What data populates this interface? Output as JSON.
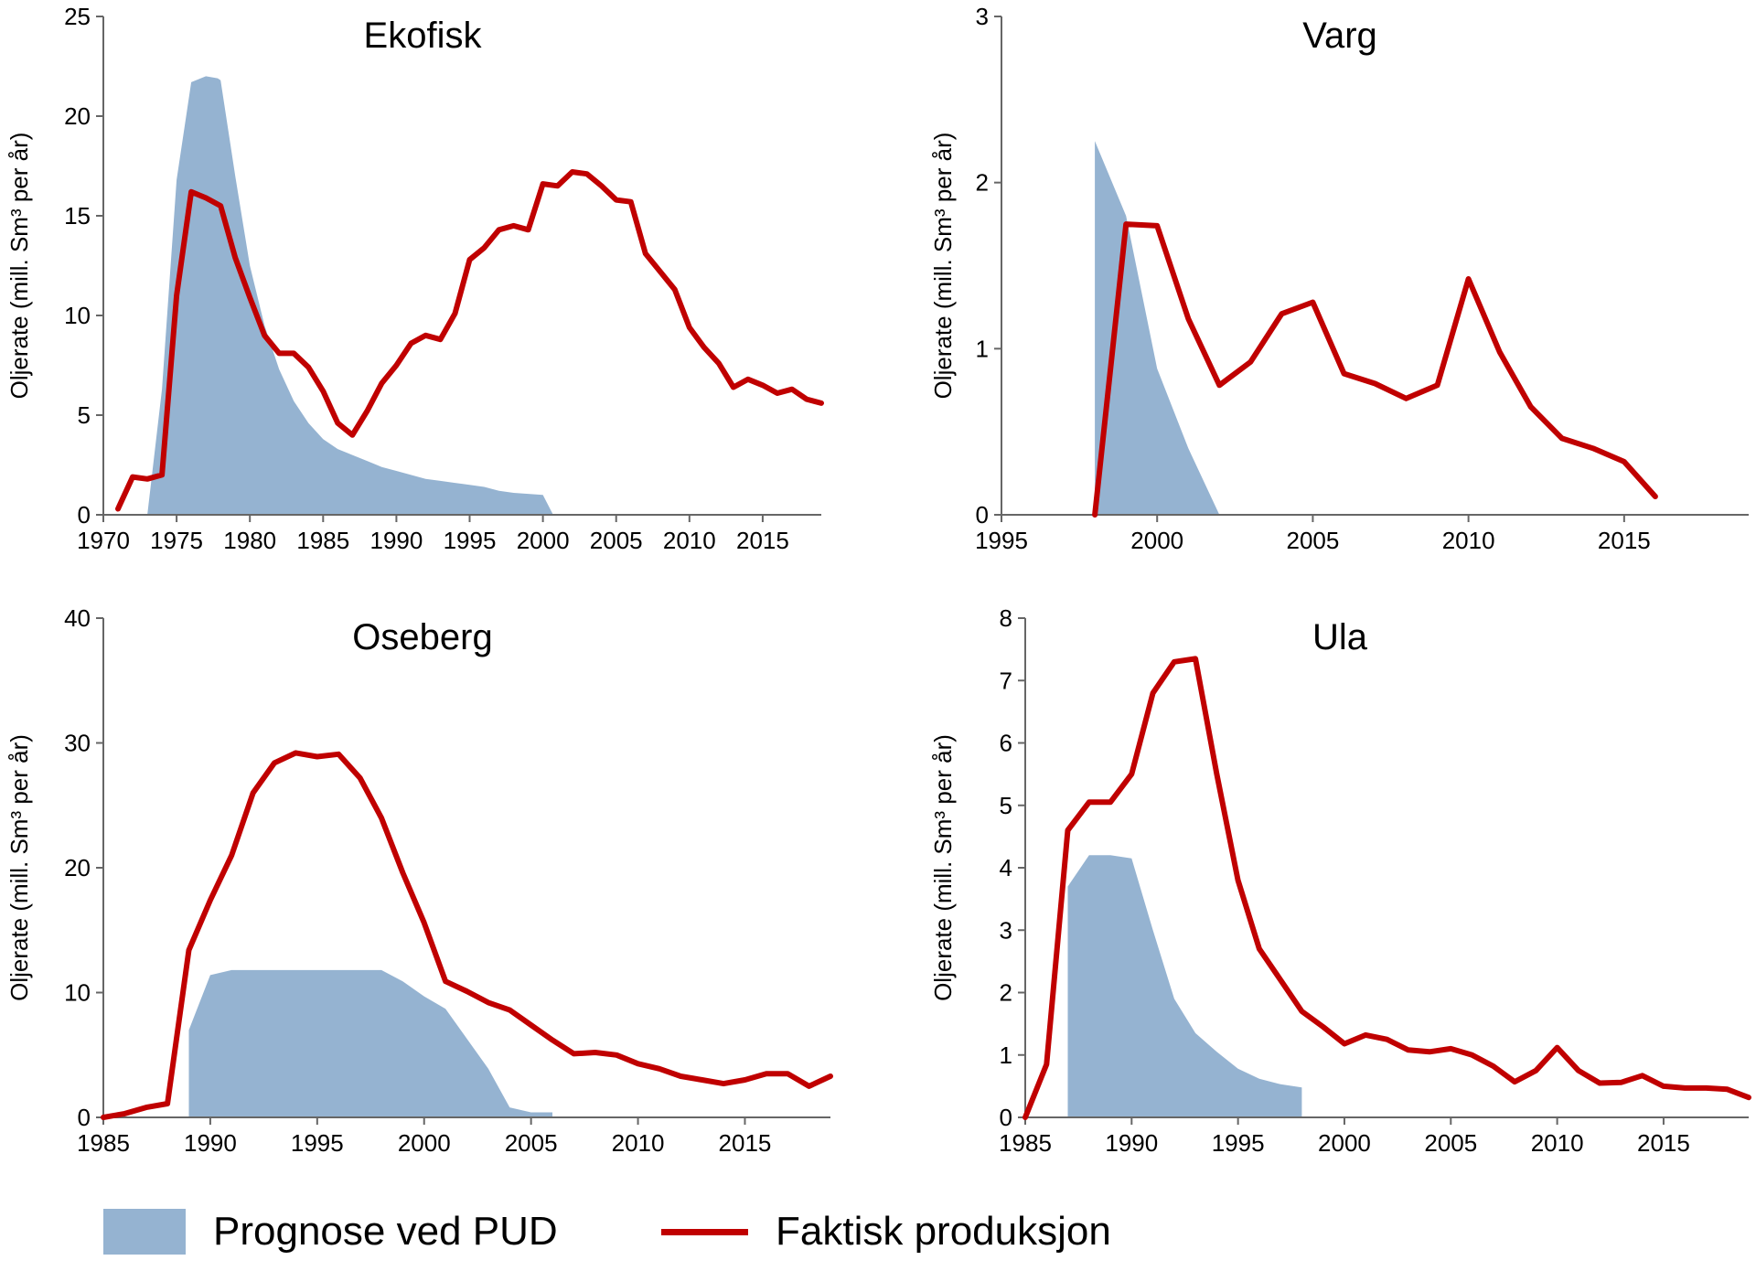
{
  "colors": {
    "forecast": "#95b3d1",
    "actual": "#c00000",
    "axis": "#666666"
  },
  "legend": {
    "forecast_label": "Prognose ved PUD",
    "actual_label": "Faktisk produksjon"
  },
  "chart_data": [
    {
      "type": "area",
      "title": "Ekofisk",
      "ylabel": "Oljerate (mill. Sm³ per år)",
      "xlim": [
        1970,
        2019
      ],
      "ylim": [
        0,
        25
      ],
      "xticks": [
        1970,
        1975,
        1980,
        1985,
        1990,
        1995,
        2000,
        2005,
        2010,
        2015
      ],
      "yticks": [
        0,
        5,
        10,
        15,
        20,
        25
      ],
      "series": [
        {
          "name": "Prognose ved PUD",
          "type": "area",
          "x": [
            1973,
            1974,
            1975,
            1976,
            1977,
            1977.8,
            1978,
            1979,
            1980,
            1981,
            1982,
            1983,
            1984,
            1985,
            1986,
            1987,
            1988,
            1989,
            1990,
            1991,
            1992,
            1993,
            1994,
            1995,
            1996,
            1997,
            1998,
            1999,
            2000,
            2000.7
          ],
          "y": [
            0,
            6.3,
            16.8,
            21.7,
            22.0,
            21.9,
            21.8,
            17.0,
            12.5,
            9.5,
            7.3,
            5.7,
            4.6,
            3.8,
            3.3,
            3.0,
            2.7,
            2.4,
            2.2,
            2.0,
            1.8,
            1.7,
            1.6,
            1.5,
            1.4,
            1.2,
            1.1,
            1.05,
            1.0,
            0
          ]
        },
        {
          "name": "Faktisk produksjon",
          "type": "line",
          "x": [
            1971,
            1972,
            1973,
            1974,
            1975,
            1976,
            1977,
            1978,
            1979,
            1980,
            1981,
            1982,
            1983,
            1984,
            1985,
            1986,
            1987,
            1988,
            1989,
            1990,
            1991,
            1992,
            1993,
            1994,
            1995,
            1996,
            1997,
            1998,
            1999,
            2000,
            2001,
            2002,
            2003,
            2004,
            2005,
            2006,
            2007,
            2008,
            2009,
            2010,
            2011,
            2012,
            2013,
            2014,
            2015,
            2016,
            2017,
            2018,
            2019
          ],
          "y": [
            0.3,
            1.9,
            1.8,
            2.0,
            11.0,
            16.2,
            15.9,
            15.5,
            12.9,
            10.9,
            9.0,
            8.1,
            8.1,
            7.4,
            6.2,
            4.6,
            4.0,
            5.2,
            6.6,
            7.5,
            8.6,
            9.0,
            8.8,
            10.1,
            12.8,
            13.4,
            14.3,
            14.5,
            14.3,
            16.6,
            16.5,
            17.2,
            17.1,
            16.5,
            15.8,
            15.7,
            13.1,
            12.2,
            11.3,
            9.4,
            8.4,
            7.6,
            6.4,
            6.8,
            6.5,
            6.1,
            6.3,
            5.8,
            5.6
          ]
        }
      ]
    },
    {
      "type": "area",
      "title": "Varg",
      "ylabel": "Oljerate (mill. Sm³ per år)",
      "xlim": [
        1995,
        2019
      ],
      "ylim": [
        0,
        3
      ],
      "xticks": [
        1995,
        2000,
        2005,
        2010,
        2015
      ],
      "yticks": [
        0,
        1,
        2,
        3
      ],
      "series": [
        {
          "name": "Prognose ved PUD",
          "type": "area",
          "x": [
            1998,
            1998,
            1999,
            2000,
            2001,
            2002
          ],
          "y": [
            0,
            2.25,
            1.8,
            0.88,
            0.4,
            0
          ]
        },
        {
          "name": "Faktisk produksjon",
          "type": "line",
          "x": [
            1998,
            1999,
            2000,
            2001,
            2002,
            2003,
            2004,
            2005,
            2006,
            2007,
            2008,
            2009,
            2010,
            2011,
            2012,
            2013,
            2014,
            2015,
            2016
          ],
          "y": [
            0,
            1.75,
            1.74,
            1.18,
            0.78,
            0.92,
            1.21,
            1.28,
            0.85,
            0.79,
            0.7,
            0.78,
            1.42,
            0.98,
            0.65,
            0.46,
            0.4,
            0.32,
            0.11
          ]
        }
      ]
    },
    {
      "type": "area",
      "title": "Oseberg",
      "ylabel": "Oljerate (mill. Sm³ per år)",
      "xlim": [
        1985,
        2019
      ],
      "ylim": [
        0,
        40
      ],
      "xticks": [
        1985,
        1990,
        1995,
        2000,
        2005,
        2010,
        2015
      ],
      "yticks": [
        0,
        10,
        20,
        30,
        40
      ],
      "series": [
        {
          "name": "Prognose ved PUD",
          "type": "area",
          "x": [
            1989,
            1989,
            1990,
            1991,
            1992,
            1993,
            1994,
            1995,
            1996,
            1997,
            1998,
            1999,
            2000,
            2001,
            2002,
            2003,
            2004,
            2005,
            2006,
            2006
          ],
          "y": [
            0,
            7.0,
            11.4,
            11.8,
            11.8,
            11.8,
            11.8,
            11.8,
            11.8,
            11.8,
            11.8,
            10.9,
            9.7,
            8.7,
            6.3,
            3.9,
            0.8,
            0.4,
            0.4,
            0
          ]
        },
        {
          "name": "Faktisk produksjon",
          "type": "line",
          "x": [
            1985,
            1986,
            1987,
            1988,
            1989,
            1990,
            1991,
            1992,
            1993,
            1994,
            1995,
            1996,
            1997,
            1998,
            1999,
            2000,
            2001,
            2002,
            2003,
            2004,
            2005,
            2006,
            2007,
            2008,
            2009,
            2010,
            2011,
            2012,
            2013,
            2014,
            2015,
            2016,
            2017,
            2018,
            2019
          ],
          "y": [
            0,
            0.3,
            0.8,
            1.1,
            13.4,
            17.4,
            21.0,
            26.0,
            28.4,
            29.2,
            28.9,
            29.1,
            27.2,
            24.0,
            19.6,
            15.6,
            10.9,
            10.1,
            9.2,
            8.6,
            7.4,
            6.2,
            5.1,
            5.2,
            5.0,
            4.3,
            3.9,
            3.3,
            3.0,
            2.7,
            3.0,
            3.5,
            3.5,
            2.5,
            3.3
          ]
        }
      ]
    },
    {
      "type": "area",
      "title": "Ula",
      "ylabel": "Oljerate (mill. Sm³ per år)",
      "xlim": [
        1985,
        2019
      ],
      "ylim": [
        0,
        8
      ],
      "xticks": [
        1985,
        1990,
        1995,
        2000,
        2005,
        2010,
        2015
      ],
      "yticks": [
        0,
        1,
        2,
        3,
        4,
        5,
        6,
        7,
        8
      ],
      "series": [
        {
          "name": "Prognose ved PUD",
          "type": "area",
          "x": [
            1987,
            1987,
            1988,
            1989,
            1990,
            1991,
            1992,
            1993,
            1994,
            1995,
            1996,
            1997,
            1998,
            1998
          ],
          "y": [
            0,
            3.7,
            4.2,
            4.2,
            4.15,
            3.0,
            1.9,
            1.35,
            1.05,
            0.78,
            0.62,
            0.53,
            0.48,
            0
          ]
        },
        {
          "name": "Faktisk produksjon",
          "type": "line",
          "x": [
            1985,
            1986,
            1987,
            1988,
            1989,
            1990,
            1991,
            1992,
            1993,
            1994,
            1995,
            1996,
            1997,
            1998,
            1999,
            2000,
            2001,
            2002,
            2003,
            2004,
            2005,
            2006,
            2007,
            2008,
            2009,
            2010,
            2011,
            2012,
            2013,
            2014,
            2015,
            2016,
            2017,
            2018,
            2019
          ],
          "y": [
            0,
            0.85,
            4.6,
            5.05,
            5.05,
            5.5,
            6.8,
            7.3,
            7.35,
            5.5,
            3.8,
            2.7,
            2.2,
            1.7,
            1.45,
            1.18,
            1.32,
            1.25,
            1.08,
            1.05,
            1.1,
            1.0,
            0.82,
            0.57,
            0.75,
            1.12,
            0.75,
            0.55,
            0.56,
            0.67,
            0.5,
            0.47,
            0.47,
            0.45,
            0.32
          ]
        }
      ]
    }
  ]
}
